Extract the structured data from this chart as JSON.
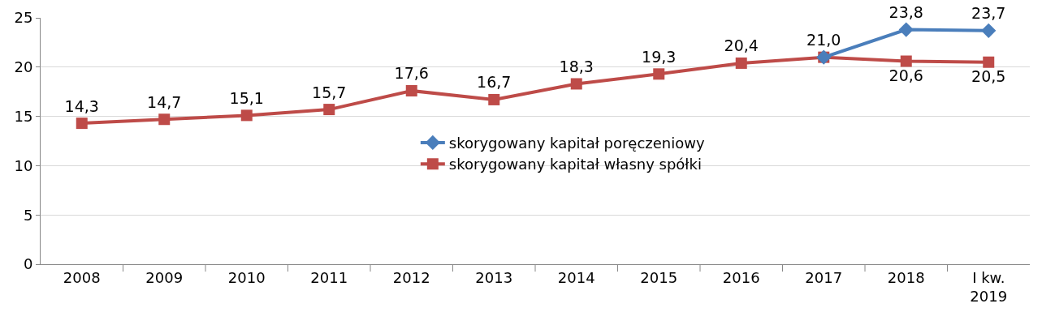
{
  "chart_data": {
    "type": "line",
    "categories": [
      "2008",
      "2009",
      "2010",
      "2011",
      "2012",
      "2013",
      "2014",
      "2015",
      "2016",
      "2017",
      "2018",
      "I kw.\n2019"
    ],
    "series": [
      {
        "name": "skorygowany kapitał poręczeniowy",
        "color": "#4a7ebb",
        "marker": "diamond",
        "values": [
          null,
          null,
          null,
          null,
          null,
          null,
          null,
          null,
          null,
          21.0,
          23.8,
          23.7
        ],
        "value_labels": [
          null,
          null,
          null,
          null,
          null,
          null,
          null,
          null,
          null,
          null,
          "23,8",
          "23,7"
        ]
      },
      {
        "name": "skorygowany kapitał własny spółki",
        "color": "#be4b48",
        "marker": "square",
        "values": [
          14.3,
          14.7,
          15.1,
          15.7,
          17.6,
          16.7,
          18.3,
          19.3,
          20.4,
          21.0,
          20.6,
          20.5
        ],
        "value_labels": [
          "14,3",
          "14,7",
          "15,1",
          "15,7",
          "17,6",
          "16,7",
          "18,3",
          "19,3",
          "20,4",
          "21,0",
          "20,6",
          "20,5"
        ]
      }
    ],
    "ylim": [
      0,
      25
    ],
    "yticks": [
      0,
      5,
      10,
      15,
      20,
      25
    ],
    "grid": "y",
    "legend": "center",
    "line_style": "solid"
  }
}
